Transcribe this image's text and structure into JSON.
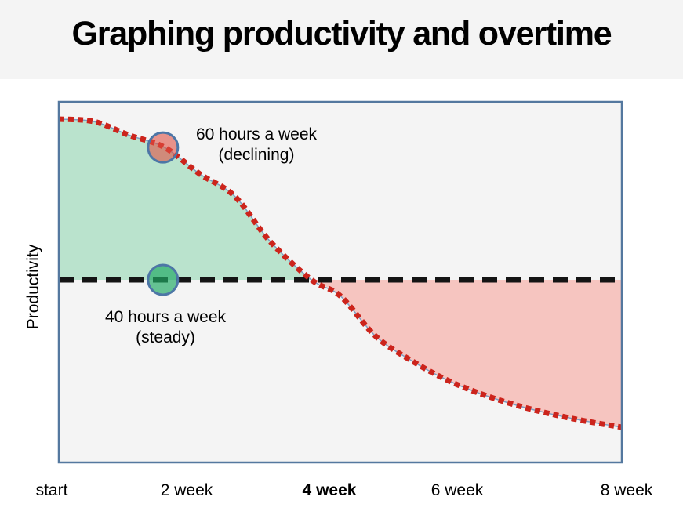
{
  "page": {
    "title": "Graphing productivity and overtime"
  },
  "chart": {
    "ylabel": "Productivity",
    "annotations": {
      "declining": {
        "line1": "60 hours a week",
        "line2": "(declining)"
      },
      "steady": {
        "line1": "40 hours a week",
        "line2": "(steady)"
      }
    }
  },
  "chart_data": {
    "type": "line",
    "title": "Graphing productivity and overtime",
    "xlabel": "",
    "ylabel": "Productivity",
    "x_unit": "weeks",
    "y_unit": "relative productivity (40 hours/week steady = 0)",
    "xlim": [
      0,
      8
    ],
    "ylim": [
      -1.1,
      1.1
    ],
    "grid": false,
    "x_ticks": [
      {
        "week": 0,
        "label": "start",
        "bold": false
      },
      {
        "week": 2,
        "label": "2 week",
        "bold": false
      },
      {
        "week": 4,
        "label": "4 week",
        "bold": true
      },
      {
        "week": 6,
        "label": "6 week",
        "bold": false
      },
      {
        "week": 8,
        "label": "8 week",
        "bold": false
      }
    ],
    "series": [
      {
        "name": "60 hours a week (declining)",
        "line_style": "dotted",
        "color": "#cc241c",
        "x": [
          0,
          0.5,
          1,
          1.5,
          2,
          2.5,
          3,
          3.59,
          4,
          4.5,
          5,
          5.5,
          6,
          6.5,
          7,
          7.5,
          8
        ],
        "y": [
          1.0,
          0.985,
          0.9,
          0.825,
          0.66,
          0.52,
          0.24,
          0,
          -0.1,
          -0.35,
          -0.5,
          -0.62,
          -0.71,
          -0.78,
          -0.835,
          -0.88,
          -0.917
        ]
      },
      {
        "name": "40 hours a week (steady)",
        "line_style": "dashed",
        "color": "#141414",
        "x": [
          0,
          8
        ],
        "y": [
          0,
          0
        ]
      }
    ],
    "fills": [
      {
        "region": "declining above steady (weeks 0 to 3.59)",
        "color": "#bae3cd"
      },
      {
        "region": "declining below steady (weeks 3.59 to 8)",
        "color": "#f6c5c0"
      }
    ],
    "markers": [
      {
        "series": "declining",
        "week": 1.48,
        "value": 0.824,
        "fill": "rgba(224,80,66,0.60)",
        "stroke": "#4d76a6"
      },
      {
        "series": "steady",
        "week": 1.48,
        "value": 0,
        "fill": "rgba(32,170,100,0.68)",
        "stroke": "#4d76a6"
      }
    ]
  },
  "colors": {
    "page_bg": "#ffffff",
    "header_bg": "#f4f4f4",
    "plot_bg": "#f4f4f4",
    "plot_border": "#54789f",
    "green_fill": "#bae3cd",
    "pink_fill": "#f6c5c0",
    "curve_red": "#cc241c",
    "curve_outline": "#7d9ec2",
    "baseline_black": "#141414",
    "marker_stroke": "#4d76a6",
    "text": "#000000"
  }
}
